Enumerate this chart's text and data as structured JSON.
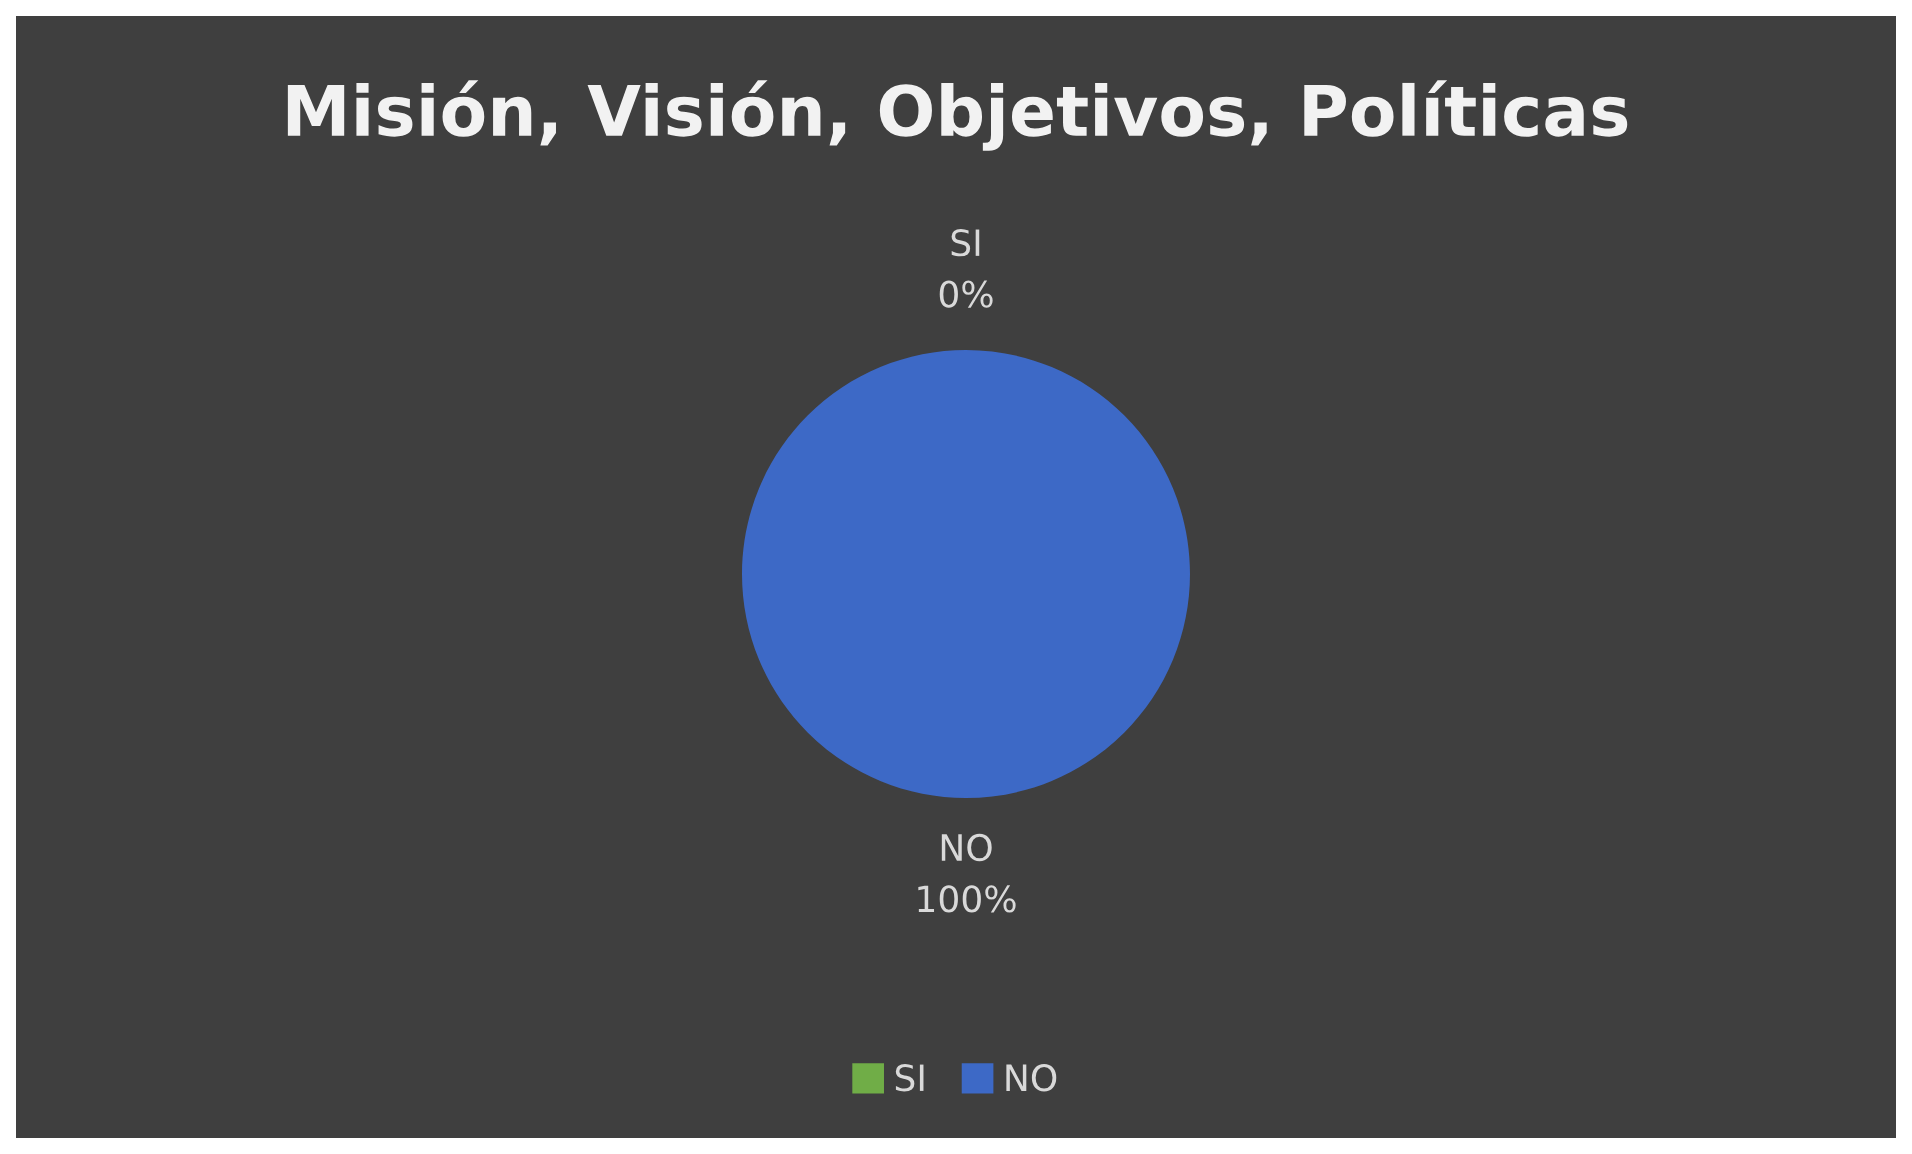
{
  "chart_data": {
    "type": "pie",
    "title": "Misión, Visión, Objetivos, Políticas",
    "categories": [
      "SI",
      "NO"
    ],
    "values": [
      0,
      100
    ],
    "value_labels": [
      "0%",
      "100%"
    ],
    "colors": [
      "#70ad47",
      "#3d69c6"
    ],
    "legend": "bottom"
  }
}
